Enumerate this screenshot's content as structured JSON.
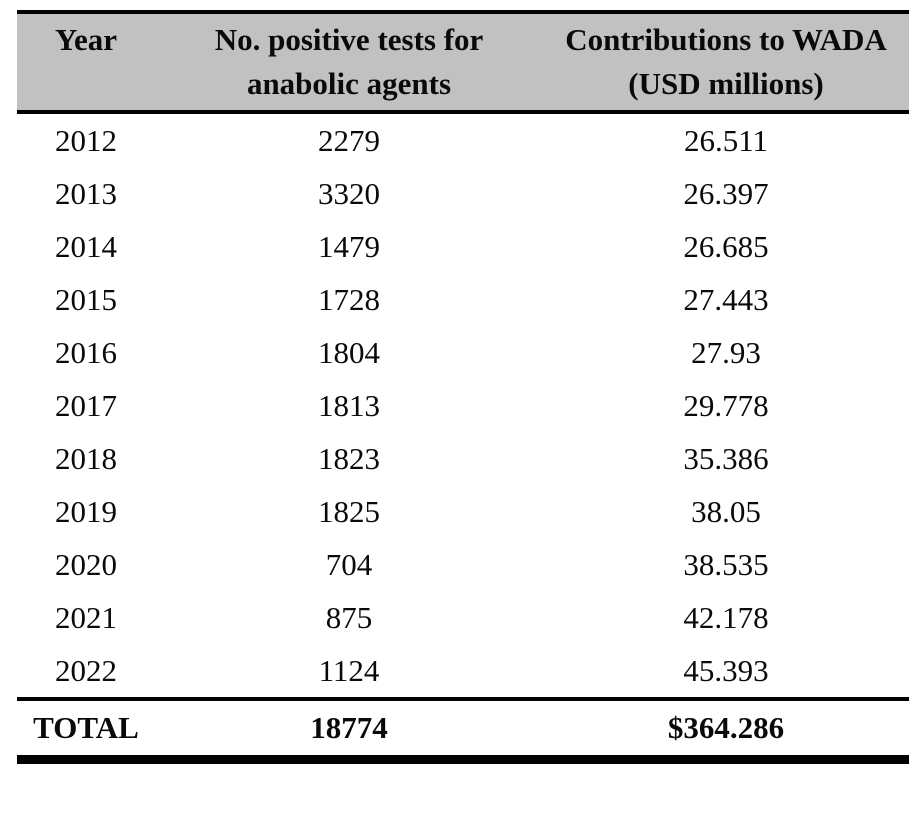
{
  "table": {
    "header": {
      "year": {
        "line1": "Year",
        "line2": ""
      },
      "tests": {
        "line1": "No. positive tests for",
        "line2": "anabolic agents"
      },
      "contributions": {
        "line1": "Contributions to WADA",
        "line2": "(USD millions)"
      }
    },
    "rows": [
      {
        "year": "2012",
        "tests": "2279",
        "contribution": "26.511"
      },
      {
        "year": "2013",
        "tests": "3320",
        "contribution": "26.397"
      },
      {
        "year": "2014",
        "tests": "1479",
        "contribution": "26.685"
      },
      {
        "year": "2015",
        "tests": "1728",
        "contribution": "27.443"
      },
      {
        "year": "2016",
        "tests": "1804",
        "contribution": "27.93"
      },
      {
        "year": "2017",
        "tests": "1813",
        "contribution": "29.778"
      },
      {
        "year": "2018",
        "tests": "1823",
        "contribution": "35.386"
      },
      {
        "year": "2019",
        "tests": "1825",
        "contribution": "38.05"
      },
      {
        "year": "2020",
        "tests": "704",
        "contribution": "38.535"
      },
      {
        "year": "2021",
        "tests": "875",
        "contribution": "42.178"
      },
      {
        "year": "2022",
        "tests": "1124",
        "contribution": "45.393"
      }
    ],
    "total": {
      "label": "TOTAL",
      "tests": "18774",
      "contribution": "$364.286"
    }
  },
  "colors": {
    "header_bg": "#c1c1c1",
    "rule": "#000000",
    "text": "#0a0a0a",
    "page_bg": "#ffffff"
  }
}
